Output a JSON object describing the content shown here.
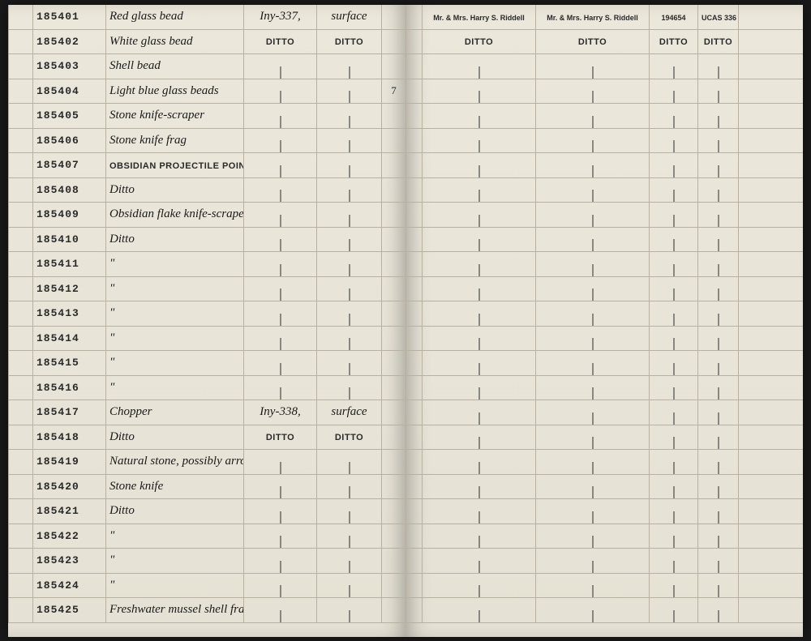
{
  "colors": {
    "page_bg": "#e8e4d8",
    "line": "#b8b0a0",
    "ink": "#2a2a2a",
    "faded": "#7a7265"
  },
  "left_page": {
    "columns": [
      "edge",
      "id",
      "description",
      "location1",
      "location2",
      "count"
    ],
    "rows": [
      {
        "id": "185401",
        "desc": "Red glass bead",
        "desc_class": "cursive",
        "loc1": "Iny-337,",
        "loc1_class": "cursive",
        "loc2": "surface",
        "loc2_class": "cursive",
        "num": ""
      },
      {
        "id": "185402",
        "desc": "White glass bead",
        "desc_class": "cursive",
        "loc1": "DITTO",
        "loc1_class": "typed",
        "loc2": "DITTO",
        "loc2_class": "typed",
        "num": ""
      },
      {
        "id": "185403",
        "desc": "Shell bead",
        "desc_class": "cursive",
        "loc1": "|",
        "loc2": "|",
        "num": ""
      },
      {
        "id": "185404",
        "desc": "Light blue glass beads",
        "desc_class": "cursive",
        "loc1": "|",
        "loc2": "|",
        "num": "7"
      },
      {
        "id": "185405",
        "desc": "Stone knife-scraper",
        "desc_class": "cursive",
        "loc1": "|",
        "loc2": "|",
        "num": ""
      },
      {
        "id": "185406",
        "desc": "Stone knife frag",
        "desc_class": "cursive",
        "loc1": "|",
        "loc2": "|",
        "num": ""
      },
      {
        "id": "185407",
        "desc": "OBSIDIAN PROJECTILE POINT frag",
        "desc_class": "typed",
        "loc1": "|",
        "loc2": "|",
        "num": ""
      },
      {
        "id": "185408",
        "desc": "Ditto",
        "desc_class": "cursive",
        "loc1": "|",
        "loc2": "|",
        "num": ""
      },
      {
        "id": "185409",
        "desc": "Obsidian flake knife-scraper",
        "desc_class": "cursive",
        "loc1": "|",
        "loc2": "|",
        "num": ""
      },
      {
        "id": "185410",
        "desc": "Ditto",
        "desc_class": "cursive",
        "loc1": "|",
        "loc2": "|",
        "num": ""
      },
      {
        "id": "185411",
        "desc": "\"",
        "desc_class": "cursive",
        "loc1": "|",
        "loc2": "|",
        "num": ""
      },
      {
        "id": "185412",
        "desc": "\"",
        "desc_class": "cursive",
        "loc1": "|",
        "loc2": "|",
        "num": ""
      },
      {
        "id": "185413",
        "desc": "\"",
        "desc_class": "cursive",
        "loc1": "|",
        "loc2": "|",
        "num": ""
      },
      {
        "id": "185414",
        "desc": "\"",
        "desc_class": "cursive",
        "loc1": "|",
        "loc2": "|",
        "num": ""
      },
      {
        "id": "185415",
        "desc": "\"",
        "desc_class": "cursive",
        "loc1": "|",
        "loc2": "|",
        "num": ""
      },
      {
        "id": "185416",
        "desc": "\"",
        "desc_class": "cursive",
        "loc1": "|",
        "loc2": "|",
        "num": ""
      },
      {
        "id": "185417",
        "desc": "Chopper",
        "desc_class": "cursive",
        "loc1": "Iny-338,",
        "loc1_class": "cursive",
        "loc2": "surface",
        "loc2_class": "cursive",
        "num": ""
      },
      {
        "id": "185418",
        "desc": "Ditto",
        "desc_class": "cursive",
        "loc1": "DITTO",
        "loc1_class": "typed",
        "loc2": "DITTO",
        "loc2_class": "typed",
        "num": ""
      },
      {
        "id": "185419",
        "desc": "Natural stone, possibly arrow wrench",
        "desc_class": "cursive",
        "loc1": "|",
        "loc2": "|",
        "num": ""
      },
      {
        "id": "185420",
        "desc": "Stone knife",
        "desc_class": "cursive",
        "loc1": "|",
        "loc2": "|",
        "num": ""
      },
      {
        "id": "185421",
        "desc": "Ditto",
        "desc_class": "cursive",
        "loc1": "|",
        "loc2": "|",
        "num": ""
      },
      {
        "id": "185422",
        "desc": "\"",
        "desc_class": "cursive",
        "loc1": "|",
        "loc2": "|",
        "num": ""
      },
      {
        "id": "185423",
        "desc": "\"",
        "desc_class": "cursive",
        "loc1": "|",
        "loc2": "|",
        "num": ""
      },
      {
        "id": "185424",
        "desc": "\"",
        "desc_class": "cursive",
        "loc1": "|",
        "loc2": "|",
        "num": ""
      },
      {
        "id": "185425",
        "desc": "Freshwater mussel shell frags",
        "desc_class": "cursive",
        "loc1": "|",
        "loc2": "|",
        "num": ""
      }
    ]
  },
  "right_page": {
    "header": {
      "col1": "Mr. & Mrs. Harry S. Riddell",
      "col2": "Mr. & Mrs. Harry S. Riddell",
      "col3": "194654",
      "col4": "UCAS 336"
    },
    "row2": {
      "col1": "DITTO",
      "col2": "DITTO",
      "col3": "DITTO",
      "col4": "DITTO"
    },
    "faded_ids": [
      "",
      "",
      "",
      "",
      "",
      "",
      "",
      "",
      "",
      "",
      "",
      "",
      "",
      "",
      "",
      "",
      "",
      "",
      "",
      "",
      "",
      "",
      "",
      "",
      ""
    ]
  }
}
